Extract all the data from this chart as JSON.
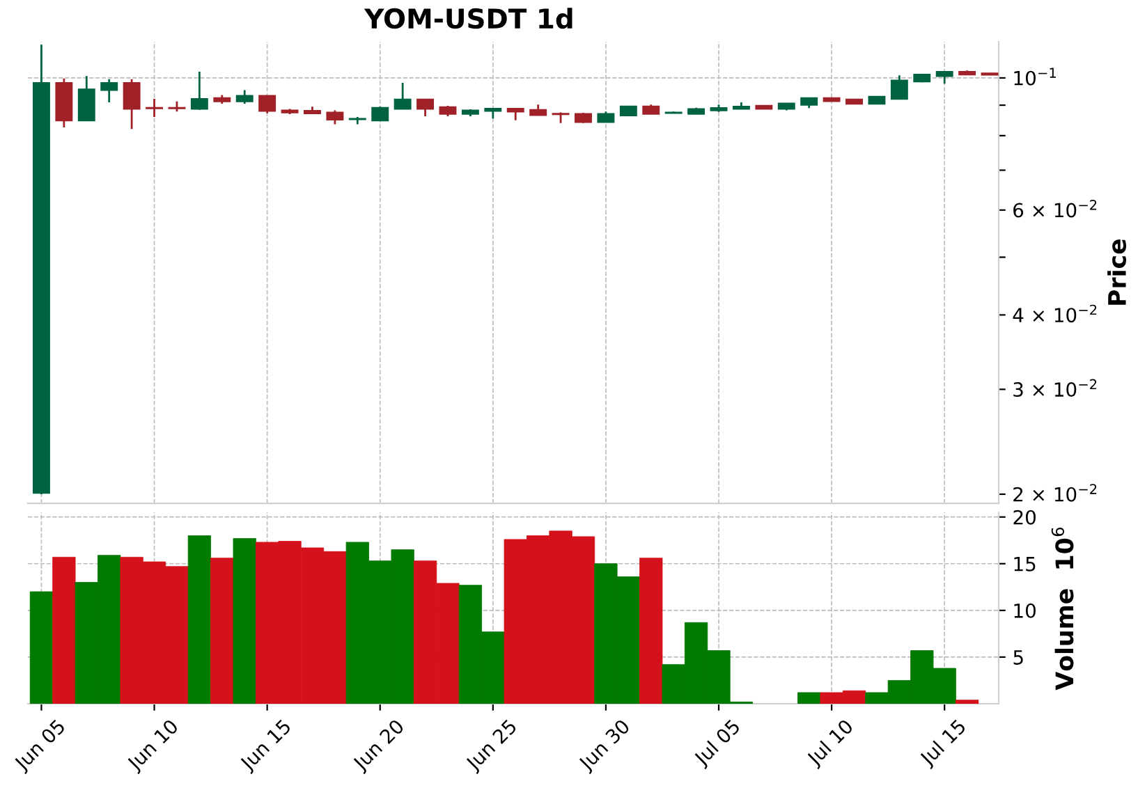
{
  "chart_data": [
    {
      "type": "candlestick",
      "title": "YOM-USDT 1d",
      "ylabel": "Price",
      "categories": [
        null,
        null,
        null,
        null,
        null,
        null,
        null,
        null,
        null,
        null,
        null,
        null,
        null,
        null,
        null,
        null,
        null,
        null,
        null,
        null,
        null,
        null,
        null,
        null,
        null,
        null,
        null,
        null,
        null,
        null,
        null,
        null,
        null,
        null,
        null,
        null,
        null,
        null,
        null,
        null,
        null,
        null,
        null
      ],
      "ohlc": [
        [
          0.0201,
          0.1137,
          0.02,
          0.0981
        ],
        [
          0.0981,
          0.0998,
          0.0826,
          0.0848
        ],
        [
          0.0848,
          0.1007,
          0.0848,
          0.0957
        ],
        [
          0.0954,
          0.0995,
          0.091,
          0.0981
        ],
        [
          0.0981,
          0.0995,
          0.0821,
          0.0887
        ],
        [
          0.0891,
          0.0922,
          0.086,
          0.0889
        ],
        [
          0.0891,
          0.0913,
          0.0878,
          0.0889
        ],
        [
          0.0887,
          0.1024,
          0.0884,
          0.0922
        ],
        [
          0.0925,
          0.0936,
          0.0905,
          0.0913
        ],
        [
          0.0913,
          0.0954,
          0.0905,
          0.0933
        ],
        [
          0.0933,
          0.0933,
          0.0872,
          0.088
        ],
        [
          0.0882,
          0.0887,
          0.0869,
          0.0875
        ],
        [
          0.0881,
          0.0895,
          0.0869,
          0.0872
        ],
        [
          0.0875,
          0.0882,
          0.0836,
          0.0851
        ],
        [
          0.0852,
          0.086,
          0.0836,
          0.0854
        ],
        [
          0.0848,
          0.0895,
          0.0848,
          0.0891
        ],
        [
          0.0887,
          0.0981,
          0.0887,
          0.092
        ],
        [
          0.092,
          0.092,
          0.0862,
          0.0887
        ],
        [
          0.0893,
          0.0898,
          0.0862,
          0.087
        ],
        [
          0.087,
          0.0886,
          0.0862,
          0.0882
        ],
        [
          0.088,
          0.089,
          0.0855,
          0.0888
        ],
        [
          0.0888,
          0.0888,
          0.0849,
          0.0878
        ],
        [
          0.0884,
          0.0902,
          0.0866,
          0.0866
        ],
        [
          0.0871,
          0.0875,
          0.084,
          0.0869
        ],
        [
          0.087,
          0.0874,
          0.084,
          0.0843
        ],
        [
          0.0843,
          0.0878,
          0.0843,
          0.087
        ],
        [
          0.0865,
          0.0898,
          0.0862,
          0.0896
        ],
        [
          0.0896,
          0.0902,
          0.087,
          0.087
        ],
        [
          0.0873,
          0.0878,
          0.0872,
          0.0875
        ],
        [
          0.087,
          0.0891,
          0.087,
          0.0887
        ],
        [
          0.0882,
          0.0902,
          0.0877,
          0.089
        ],
        [
          0.0887,
          0.091,
          0.0887,
          0.0895
        ],
        [
          0.0898,
          0.0898,
          0.0887,
          0.0887
        ],
        [
          0.0887,
          0.0906,
          0.0882,
          0.0906
        ],
        [
          0.0901,
          0.0925,
          0.089,
          0.0925
        ],
        [
          0.0925,
          0.0925,
          0.0914,
          0.0914
        ],
        [
          0.092,
          0.092,
          0.0905,
          0.0905
        ],
        [
          0.0905,
          0.093,
          0.0905,
          0.093
        ],
        [
          0.0922,
          0.101,
          0.0922,
          0.099
        ],
        [
          0.0986,
          0.1016,
          0.0983,
          0.1013
        ],
        [
          0.1007,
          0.1024,
          0.0978,
          0.1024
        ],
        [
          0.1024,
          0.1029,
          0.1013,
          0.1013
        ],
        [
          0.1018,
          0.1018,
          0.1012,
          0.1012
        ]
      ],
      "colors": [
        "#006340",
        "#a02128",
        "#006340",
        "#006340",
        "#a02128",
        "#a02128",
        "#a02128",
        "#006340",
        "#a02128",
        "#006340",
        "#a02128",
        "#a02128",
        "#a02128",
        "#a02128",
        "#006340",
        "#006340",
        "#006340",
        "#a02128",
        "#a02128",
        "#006340",
        "#006340",
        "#a02128",
        "#a02128",
        "#a02128",
        "#a02128",
        "#006340",
        "#006340",
        "#a02128",
        "#006340",
        "#006340",
        "#006340",
        "#006340",
        "#a02128",
        "#006340",
        "#006340",
        "#a02128",
        "#a02128",
        "#006340",
        "#006340",
        "#006340",
        "#006340",
        "#a02128",
        "#a02128"
      ],
      "log": "y",
      "ylim": [
        0.0193,
        0.115
      ],
      "yticks": [
        {
          "value": 0.02,
          "label": "2 × 10$^{−2}$"
        },
        {
          "value": 0.03,
          "label": "3 × 10$^{−2}$"
        },
        {
          "value": 0.04,
          "label": "4 × 10$^{−2}$"
        },
        {
          "value": 0.05,
          "label": null
        },
        {
          "value": 0.06,
          "label": "6 × 10$^{−2}$"
        },
        {
          "value": 0.07,
          "label": null
        },
        {
          "value": 0.08,
          "label": null
        },
        {
          "value": 0.09,
          "label": null
        },
        {
          "value": 0.1,
          "label": "10$^{−1}$"
        }
      ],
      "grid": true,
      "tick_labels": "y"
    },
    {
      "type": "bar",
      "ylabel": "Volume  10$^{6}$",
      "categories": [
        "Jun 05",
        null,
        null,
        null,
        null,
        "Jun 10",
        null,
        null,
        null,
        null,
        "Jun 15",
        null,
        null,
        null,
        null,
        "Jun 20",
        null,
        null,
        null,
        null,
        "Jun 25",
        null,
        null,
        null,
        null,
        "Jun 30",
        null,
        null,
        null,
        null,
        "Jul 05",
        null,
        null,
        null,
        null,
        "Jul 10",
        null,
        null,
        null,
        null,
        "Jul 15",
        null,
        null
      ],
      "values": [
        12.0,
        15.7,
        13.0,
        15.9,
        15.7,
        15.2,
        14.7,
        18.0,
        15.6,
        17.7,
        17.3,
        17.4,
        16.7,
        16.3,
        17.3,
        15.3,
        16.5,
        15.3,
        12.9,
        12.7,
        7.7,
        17.6,
        18.0,
        18.5,
        17.9,
        15.0,
        13.6,
        15.6,
        4.2,
        8.7,
        5.7,
        0.2,
        null,
        null,
        1.2,
        1.2,
        1.4,
        1.2,
        2.5,
        5.7,
        3.8,
        0.4,
        null
      ],
      "colors": [
        "#007a00",
        "#d5121b",
        "#007a00",
        "#007a00",
        "#d5121b",
        "#d5121b",
        "#d5121b",
        "#007a00",
        "#d5121b",
        "#007a00",
        "#d5121b",
        "#d5121b",
        "#d5121b",
        "#d5121b",
        "#007a00",
        "#007a00",
        "#007a00",
        "#d5121b",
        "#d5121b",
        "#007a00",
        "#007a00",
        "#d5121b",
        "#d5121b",
        "#d5121b",
        "#d5121b",
        "#007a00",
        "#007a00",
        "#d5121b",
        "#007a00",
        "#007a00",
        "#007a00",
        "#007a00",
        "#d5121b",
        "#007a00",
        "#007a00",
        "#d5121b",
        "#d5121b",
        "#007a00",
        "#007a00",
        "#007a00",
        "#007a00",
        "#d5121b",
        "#d5121b"
      ],
      "ylim": [
        0,
        20.5
      ],
      "yticks": [
        5,
        10,
        15,
        20
      ],
      "grid": true
    }
  ]
}
